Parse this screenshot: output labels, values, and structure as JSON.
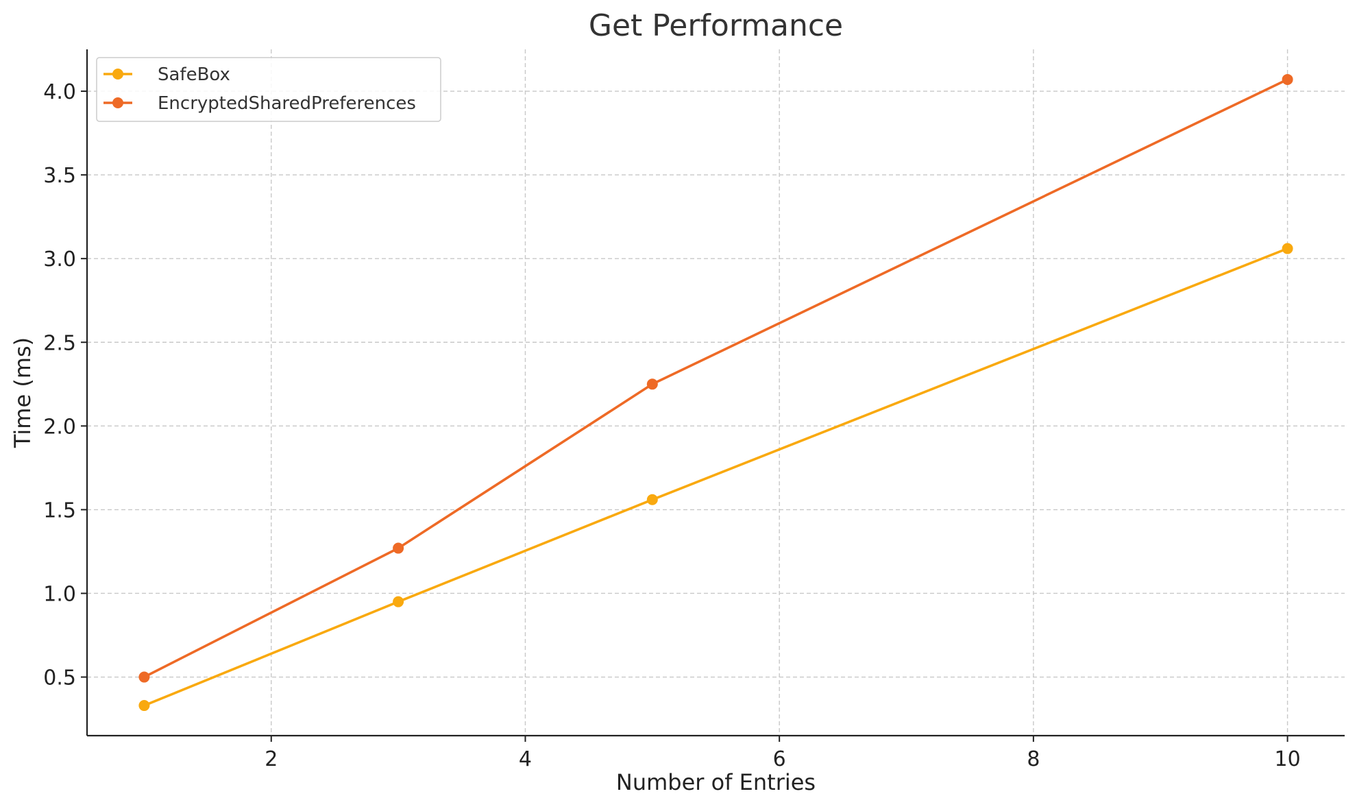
{
  "chart_data": {
    "type": "line",
    "title": "Get Performance",
    "xlabel": "Number of Entries",
    "ylabel": "Time (ms)",
    "xlim": [
      0.55,
      10.45
    ],
    "ylim": [
      0.15,
      4.25
    ],
    "x_ticks": [
      2,
      4,
      6,
      8,
      10
    ],
    "x_tick_labels": [
      "2",
      "4",
      "6",
      "8",
      "10"
    ],
    "y_ticks": [
      0.5,
      1.0,
      1.5,
      2.0,
      2.5,
      3.0,
      3.5,
      4.0
    ],
    "y_tick_labels": [
      "0.5",
      "1.0",
      "1.5",
      "2.0",
      "2.5",
      "3.0",
      "3.5",
      "4.0"
    ],
    "grid": true,
    "legend_position": "top-left",
    "x": [
      1,
      3,
      5,
      10
    ],
    "series": [
      {
        "name": "SafeBox",
        "color": "#F9A90F",
        "values": [
          0.33,
          0.95,
          1.56,
          3.06
        ]
      },
      {
        "name": "EncryptedSharedPreferences",
        "color": "#EE6A26",
        "values": [
          0.5,
          1.27,
          2.25,
          4.07
        ]
      }
    ]
  }
}
